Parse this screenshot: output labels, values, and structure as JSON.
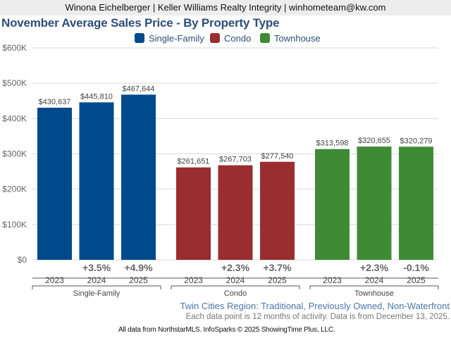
{
  "header": {
    "agent_line": "Winona Eichelberger | Keller Williams Realty Integrity | winhometeam@kw.com"
  },
  "chart_data": {
    "type": "bar",
    "title": "November Average Sales Price - By Property Type",
    "xlabel": "",
    "ylabel": "",
    "ylim": [
      0,
      600000
    ],
    "yticks": [
      0,
      100000,
      200000,
      300000,
      400000,
      500000,
      600000
    ],
    "ytick_labels": [
      "$0",
      "$100K",
      "$200K",
      "$300K",
      "$400K",
      "$500K",
      "$600K"
    ],
    "grid": true,
    "legend_placement": "top-center",
    "groups": [
      {
        "name": "Single-Family",
        "color": "#004a8b",
        "categories": [
          "2023",
          "2024",
          "2025"
        ],
        "values": [
          430637,
          445810,
          467644
        ],
        "value_labels": [
          "$430,637",
          "$445,810",
          "$467,644"
        ],
        "pct_change": [
          "",
          "+3.5%",
          "+4.9%"
        ]
      },
      {
        "name": "Condo",
        "color": "#9a2d2f",
        "categories": [
          "2023",
          "2024",
          "2025"
        ],
        "values": [
          261651,
          267703,
          277540
        ],
        "value_labels": [
          "$261,651",
          "$267,703",
          "$277,540"
        ],
        "pct_change": [
          "",
          "+2.3%",
          "+3.7%"
        ]
      },
      {
        "name": "Townhouse",
        "color": "#3f8b35",
        "categories": [
          "2023",
          "2024",
          "2025"
        ],
        "values": [
          313598,
          320655,
          320279
        ],
        "value_labels": [
          "$313,598",
          "$320,655",
          "$320,279"
        ],
        "pct_change": [
          "",
          "+2.3%",
          "-0.1%"
        ]
      }
    ],
    "legend": [
      {
        "label": "Single-Family",
        "color": "#004a8b"
      },
      {
        "label": "Condo",
        "color": "#9a2d2f"
      },
      {
        "label": "Townhouse",
        "color": "#3f8b35"
      }
    ]
  },
  "footer": {
    "region": "Twin Cities Region: Traditional, Previously Owned, Non-Waterfront",
    "note": "Each data point is 12 months of activity. Data is from December 13, 2025.",
    "source": "All data from NorthstarMLS. InfoSparks © 2025 ShowingTime Plus, LLC."
  }
}
